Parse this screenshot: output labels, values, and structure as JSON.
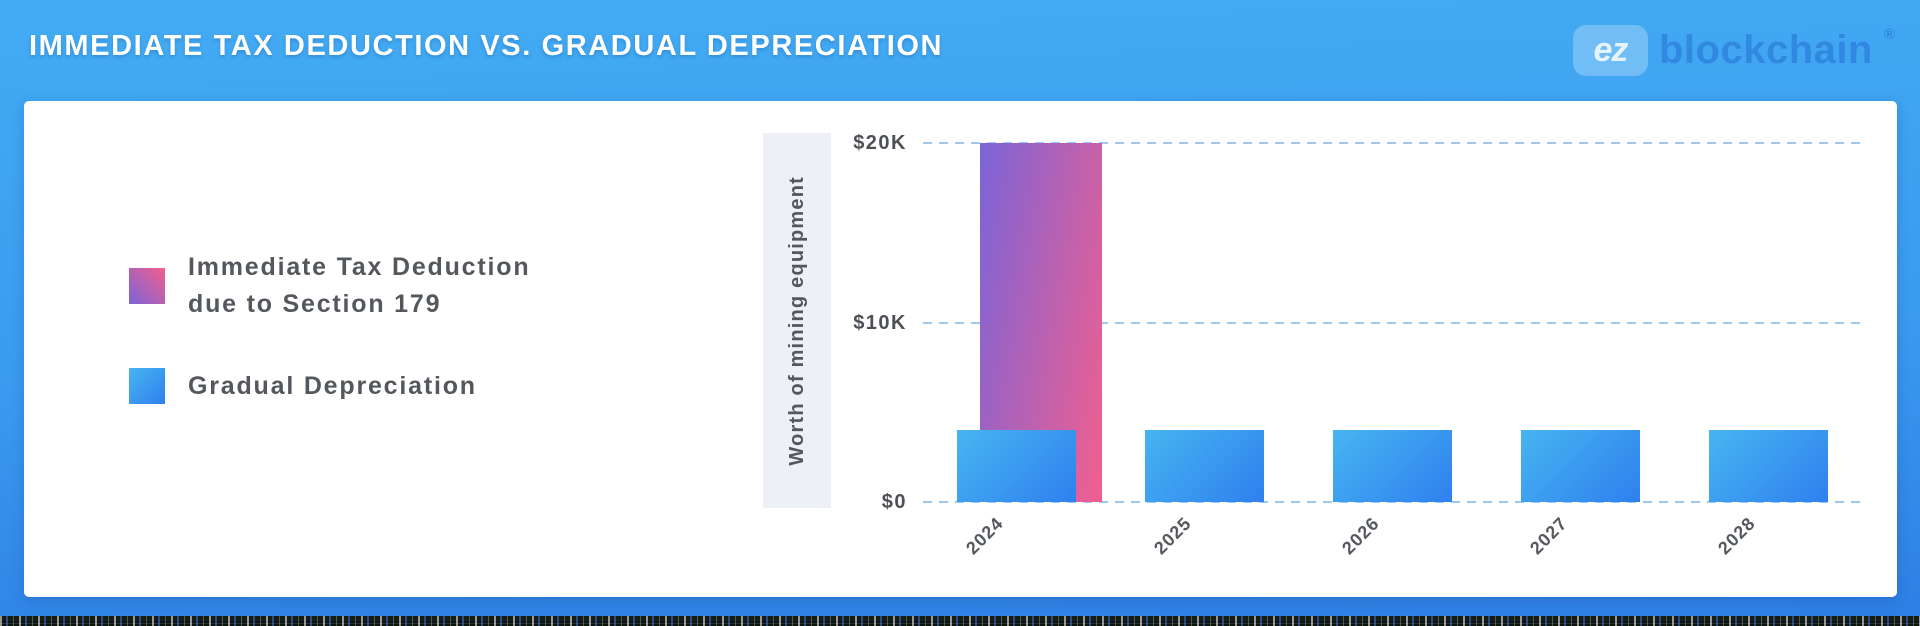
{
  "header": {
    "title": "Immediate Tax Deduction vs. Gradual Depreciation",
    "logo": {
      "mark": "ez",
      "name": "blockchain",
      "registered": "®"
    }
  },
  "legend": {
    "immediate": {
      "line1": "Immediate Tax Deduction",
      "line2": "due to Section 179"
    },
    "gradual": {
      "line1": "Gradual Depreciation"
    }
  },
  "chart_data": {
    "type": "bar",
    "title": "Immediate Tax Deduction vs. Gradual Depreciation",
    "ylabel": "Worth of mining equipment",
    "xlabel": "",
    "categories": [
      "2024",
      "2025",
      "2026",
      "2027",
      "2028"
    ],
    "series": [
      {
        "name": "Immediate Tax Deduction due to Section 179",
        "values": [
          20000,
          0,
          0,
          0,
          0
        ]
      },
      {
        "name": "Gradual Depreciation",
        "values": [
          4000,
          4000,
          4000,
          4000,
          4000
        ]
      }
    ],
    "ylim": [
      0,
      20000
    ],
    "yticks": [
      {
        "label": "$0",
        "value": 0
      },
      {
        "label": "$10K",
        "value": 10000
      },
      {
        "label": "$20K",
        "value": 20000
      }
    ],
    "grid": "horizontal-dashed",
    "legend_position": "left"
  },
  "colors": {
    "background_top": "#43abf3",
    "background_bottom": "#2e7ee4",
    "card": "#ffffff",
    "immediate_gradient": [
      "#7b64d8",
      "#f25f8e"
    ],
    "gradual_gradient": [
      "#47b5f1",
      "#2f80ee"
    ],
    "gridline": "#9fc8ef",
    "axis_text": "#4d5156",
    "legend_text": "#54585d",
    "ylabel_strip": "#edf1f6"
  }
}
